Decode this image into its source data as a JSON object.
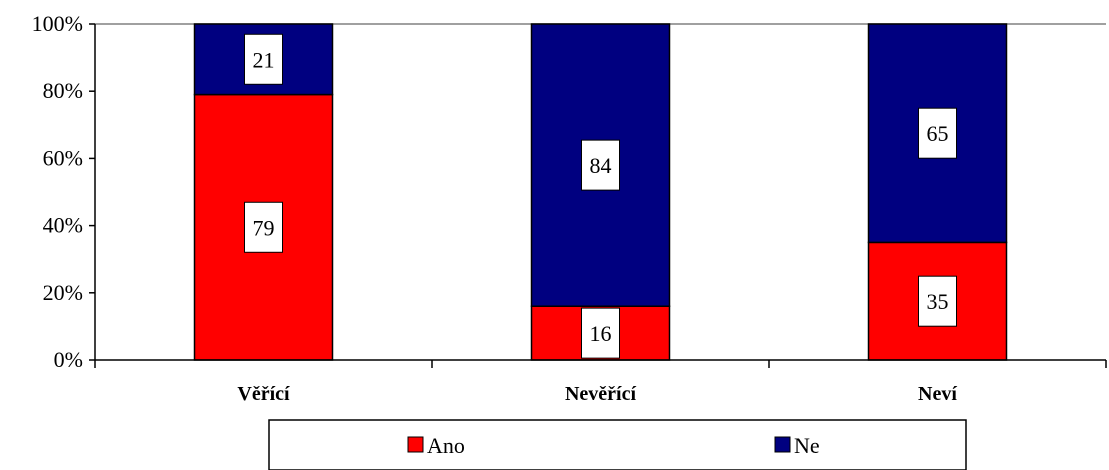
{
  "chart_data": {
    "type": "bar",
    "stacked": true,
    "normalized_percent": true,
    "categories": [
      "Věřící",
      "Nevěřící",
      "Neví"
    ],
    "series": [
      {
        "name": "Ano",
        "values": [
          79,
          16,
          35
        ],
        "color": "#ff0000"
      },
      {
        "name": "Ne",
        "values": [
          21,
          84,
          65
        ],
        "color": "#000080"
      }
    ],
    "y_ticks": [
      "0%",
      "20%",
      "40%",
      "60%",
      "80%",
      "100%"
    ],
    "ylim": [
      0,
      100
    ],
    "grid": {
      "horizontal_top_line": true
    },
    "legend": {
      "placement": "bottom-center"
    }
  }
}
